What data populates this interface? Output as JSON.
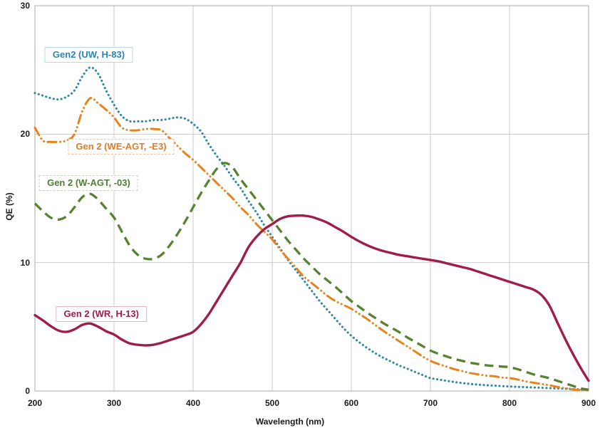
{
  "chart_data": {
    "type": "line",
    "title": "",
    "xlabel": "Wavelength (nm)",
    "ylabel": "QE (%)",
    "xlim": [
      200,
      900
    ],
    "ylim": [
      0,
      30
    ],
    "x_ticks": [
      200,
      300,
      400,
      500,
      600,
      700,
      800,
      900
    ],
    "y_ticks": [
      0,
      10,
      20,
      30
    ],
    "grid": true,
    "legend_position": "inline-annotations",
    "x": [
      200,
      210,
      220,
      230,
      240,
      250,
      260,
      270,
      280,
      290,
      300,
      310,
      320,
      330,
      340,
      350,
      360,
      370,
      380,
      390,
      400,
      410,
      420,
      430,
      440,
      450,
      460,
      470,
      480,
      490,
      500,
      510,
      520,
      530,
      540,
      550,
      560,
      570,
      580,
      590,
      600,
      610,
      620,
      630,
      640,
      650,
      660,
      670,
      680,
      690,
      700,
      710,
      720,
      730,
      740,
      750,
      760,
      770,
      780,
      790,
      800,
      810,
      820,
      830,
      840,
      850,
      860,
      870,
      880,
      890,
      900
    ],
    "series": [
      {
        "name": "Gen2 (UW, H-83)",
        "color": "#2E87A8",
        "line_style": "dotted",
        "values": [
          23.2,
          23.0,
          22.8,
          22.7,
          22.9,
          23.4,
          24.5,
          25.2,
          24.7,
          23.4,
          22.3,
          21.4,
          21.0,
          21.0,
          21.0,
          21.1,
          21.1,
          21.2,
          21.3,
          21.2,
          20.8,
          20.2,
          19.2,
          18.3,
          17.5,
          16.6,
          15.8,
          14.8,
          13.9,
          12.9,
          12.0,
          11.1,
          10.2,
          9.4,
          8.6,
          7.8,
          7.0,
          6.3,
          5.6,
          4.9,
          4.3,
          3.8,
          3.35,
          2.95,
          2.6,
          2.3,
          2.0,
          1.75,
          1.5,
          1.25,
          1.0,
          0.9,
          0.8,
          0.7,
          0.62,
          0.55,
          0.5,
          0.45,
          0.42,
          0.38,
          0.35,
          0.32,
          0.3,
          0.27,
          0.25,
          0.22,
          0.2,
          0.18,
          0.15,
          0.12,
          0.1
        ]
      },
      {
        "name": "Gen 2 (WE-AGT, -E3)",
        "color": "#E8821C",
        "line_style": "dash-dot-dot",
        "values": [
          20.5,
          19.5,
          19.4,
          19.4,
          19.5,
          20.0,
          21.8,
          22.8,
          22.4,
          21.9,
          21.3,
          20.5,
          20.3,
          20.3,
          20.4,
          20.4,
          20.3,
          19.7,
          19.1,
          18.5,
          18.0,
          17.4,
          16.8,
          16.2,
          15.6,
          15.0,
          14.3,
          13.7,
          13.0,
          12.4,
          11.8,
          11.0,
          10.3,
          9.6,
          8.9,
          8.4,
          7.9,
          7.4,
          7.0,
          6.7,
          6.4,
          6.0,
          5.6,
          5.15,
          4.7,
          4.3,
          3.9,
          3.5,
          3.1,
          2.7,
          2.35,
          2.1,
          1.9,
          1.7,
          1.55,
          1.4,
          1.3,
          1.2,
          1.15,
          1.05,
          1.0,
          0.9,
          0.75,
          0.65,
          0.55,
          0.45,
          0.32,
          0.22,
          0.12,
          0.07,
          0.05
        ]
      },
      {
        "name": "Gen 2 (W-AGT, -03)",
        "color": "#578232",
        "line_style": "dashed",
        "values": [
          14.6,
          14.0,
          13.5,
          13.35,
          13.6,
          14.3,
          15.1,
          15.35,
          14.9,
          14.2,
          13.5,
          12.4,
          11.3,
          10.6,
          10.3,
          10.3,
          10.6,
          11.3,
          12.2,
          13.2,
          14.3,
          15.4,
          16.4,
          17.3,
          17.75,
          17.4,
          16.5,
          15.7,
          14.9,
          14.1,
          13.3,
          12.5,
          11.7,
          11.0,
          10.3,
          9.7,
          9.1,
          8.6,
          8.1,
          7.55,
          7.0,
          6.55,
          6.1,
          5.7,
          5.3,
          4.95,
          4.6,
          4.2,
          3.85,
          3.5,
          3.15,
          2.9,
          2.7,
          2.5,
          2.35,
          2.2,
          2.1,
          2.0,
          1.95,
          1.9,
          1.85,
          1.7,
          1.5,
          1.3,
          1.15,
          1.0,
          0.8,
          0.6,
          0.4,
          0.2,
          0.1
        ]
      },
      {
        "name": "Gen 2 (WR, H-13)",
        "color": "#A01D48",
        "line_style": "solid",
        "values": [
          5.9,
          5.5,
          5.05,
          4.7,
          4.6,
          4.8,
          5.15,
          5.25,
          5.0,
          4.65,
          4.4,
          4.0,
          3.7,
          3.6,
          3.55,
          3.6,
          3.75,
          3.95,
          4.15,
          4.35,
          4.6,
          5.2,
          6.0,
          7.0,
          8.0,
          9.0,
          10.0,
          11.2,
          12.0,
          12.6,
          13.0,
          13.4,
          13.6,
          13.65,
          13.65,
          13.55,
          13.35,
          13.1,
          12.75,
          12.4,
          12.0,
          11.65,
          11.35,
          11.1,
          10.9,
          10.75,
          10.6,
          10.5,
          10.4,
          10.3,
          10.2,
          10.1,
          9.95,
          9.8,
          9.65,
          9.5,
          9.3,
          9.1,
          8.9,
          8.7,
          8.5,
          8.3,
          8.1,
          7.9,
          7.5,
          6.7,
          5.4,
          4.1,
          2.9,
          1.8,
          0.8
        ]
      }
    ],
    "annotations": [
      {
        "text": "Gen2 (UW, H-83)",
        "x_nm": 268,
        "y_qe": 26.2,
        "color": "#2C87B8",
        "border_color": "#BCD8E8",
        "border_style": "solid"
      },
      {
        "text": "Gen 2 (WE-AGT, -E3)",
        "x_nm": 309,
        "y_qe": 19.0,
        "color": "#E07B28",
        "border_color": "#F2C49B",
        "border_style": "dashed"
      },
      {
        "text": "Gen 2 (W-AGT, -03)",
        "x_nm": 268,
        "y_qe": 16.2,
        "color": "#4E7E32",
        "border_color": "#C5D3BE",
        "border_style": "dashed"
      },
      {
        "text": "Gen 2 (WR, H-13)",
        "x_nm": 284,
        "y_qe": 6.0,
        "color": "#A01D48",
        "border_color": "#DFB4C6",
        "border_style": "solid"
      }
    ],
    "colors": {
      "grid": "#CBCBCB",
      "axis_border": "#A8A8A8",
      "background": "#FFFFFF"
    }
  }
}
